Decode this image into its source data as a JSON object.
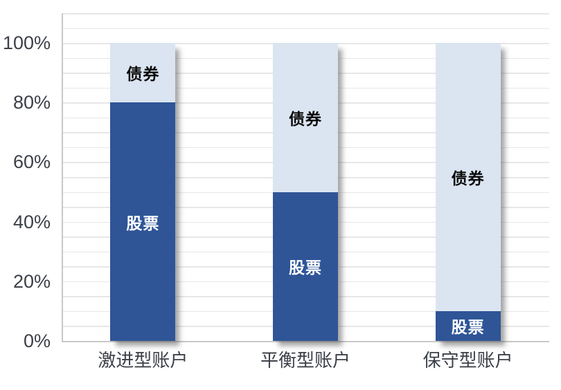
{
  "chart_data": {
    "type": "bar",
    "variant": "100-percent-stacked-column",
    "categories": [
      "激进型账户",
      "平衡型账户",
      "保守型账户"
    ],
    "series": [
      {
        "name": "股票",
        "values": [
          80,
          50,
          10
        ],
        "color": "#2F5597",
        "label_color": "#FFFFFF"
      },
      {
        "name": "债券",
        "values": [
          20,
          50,
          90
        ],
        "color": "#DBE5F1",
        "label_color": "#0A0A0A"
      }
    ],
    "unit": "%",
    "y_axis": {
      "min": 0,
      "max": 110,
      "major_tick_step": 20,
      "minor_gridline_step": 5,
      "tick_labels": [
        "0%",
        "20%",
        "40%",
        "60%",
        "80%",
        "100%"
      ]
    },
    "grid": "horizontal-minor-gridlines",
    "legend": "none",
    "data_labels": "series-name-inside-segments"
  },
  "styles": {
    "background": "#FFFFFF",
    "gridline_color": "#E7E7E7",
    "axis_line_color": "#C8C8C8",
    "tick_label_color": "#3C4048",
    "category_label_color": "#3C4048"
  }
}
